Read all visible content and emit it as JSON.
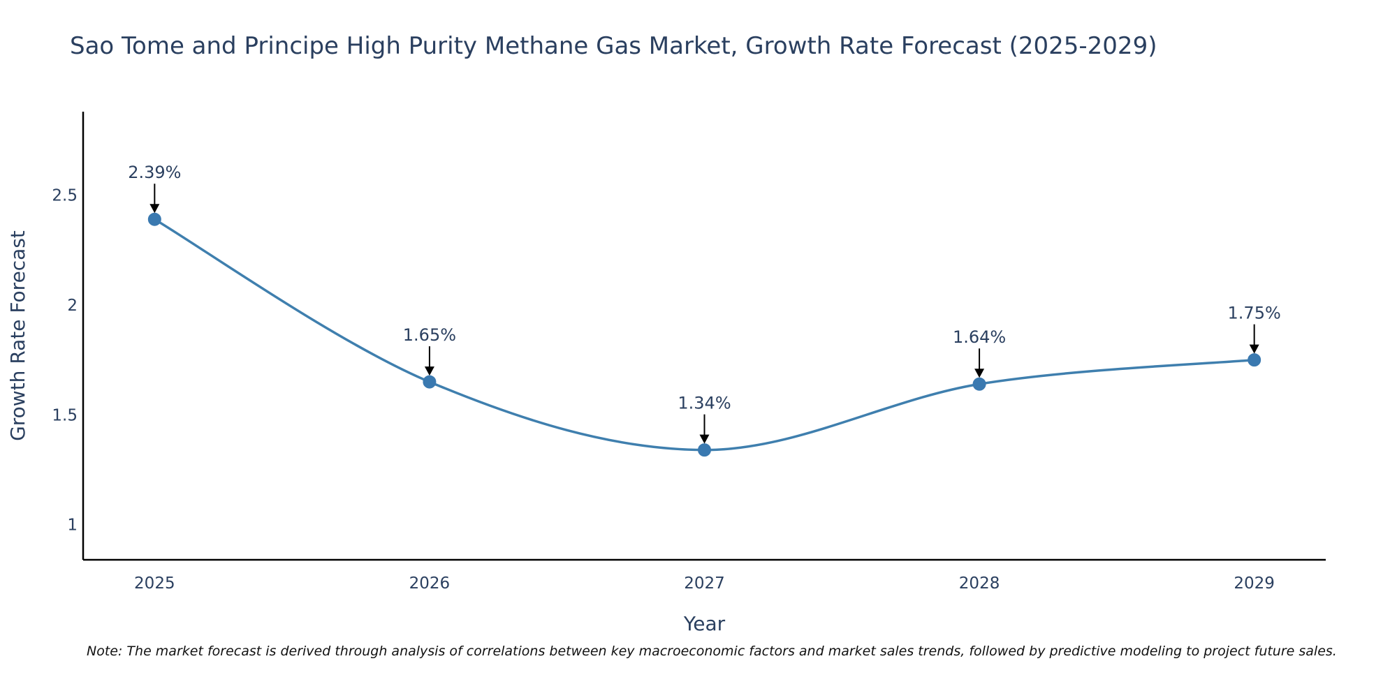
{
  "chart_data": {
    "type": "line",
    "title": "Sao Tome and Principe High Purity Methane Gas Market, Growth Rate Forecast (2025-2029)",
    "xlabel": "Year",
    "ylabel": "Growth Rate Forecast",
    "categories": [
      "2025",
      "2026",
      "2027",
      "2028",
      "2029"
    ],
    "x": [
      2025,
      2026,
      2027,
      2028,
      2029
    ],
    "values": [
      2.39,
      1.65,
      1.34,
      1.64,
      1.75
    ],
    "data_labels": [
      "2.39%",
      "1.65%",
      "1.34%",
      "1.64%",
      "1.75%"
    ],
    "y_ticks": [
      1,
      1.5,
      2,
      2.5
    ],
    "y_tick_labels": [
      "1",
      "1.5",
      "2",
      "2.5"
    ],
    "ylim": [
      0.84,
      2.88
    ],
    "xlim": [
      2024.74,
      2029.26
    ],
    "line_shape": "spline",
    "grid": false,
    "colors": {
      "series": "#3f7fae",
      "marker": "#3a79b0",
      "text": "#2a3f5f",
      "axis": "#000000"
    },
    "note": "Note: The market forecast is derived through analysis of correlations between key macroeconomic factors and market sales trends, followed by predictive modeling to project future sales."
  }
}
